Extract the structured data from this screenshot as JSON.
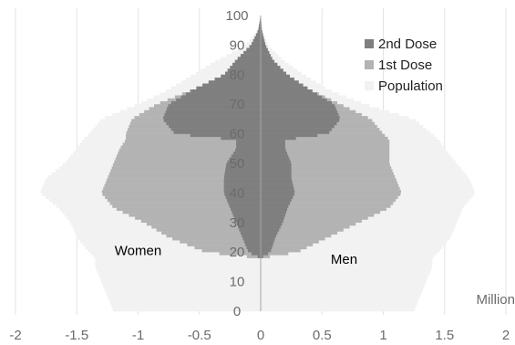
{
  "chart_data": {
    "type": "bar",
    "orientation": "horizontal",
    "subtype": "population-pyramid",
    "x_unit_label": "Million",
    "xlim": [
      -2,
      2
    ],
    "ylim": [
      0,
      100
    ],
    "x_ticks": [
      -2,
      -1.5,
      -1,
      -0.5,
      0,
      0.5,
      1,
      1.5,
      2
    ],
    "x_tick_labels": [
      "-2",
      "-1.5",
      "-1",
      "-0.5",
      "0",
      "0.5",
      "1",
      "1.5",
      "2"
    ],
    "y_ticks": [
      0,
      10,
      20,
      30,
      40,
      50,
      60,
      70,
      80,
      90,
      100
    ],
    "y_tick_labels": [
      "0",
      "10",
      "20",
      "30",
      "40",
      "50",
      "60",
      "70",
      "80",
      "90",
      "100"
    ],
    "grid": "vertical",
    "legend_position": "top-right",
    "annotations": [
      {
        "text": "Women",
        "x": -1.0,
        "y": 19
      },
      {
        "text": "Men",
        "x": 0.68,
        "y": 16
      }
    ],
    "age_points": [
      0,
      5,
      10,
      15,
      18,
      20,
      25,
      30,
      35,
      40,
      45,
      50,
      55,
      58,
      60,
      65,
      70,
      75,
      80,
      85,
      90,
      95,
      100
    ],
    "series": [
      {
        "name": "Population",
        "color": "#f2f2f2",
        "women": [
          1.2,
          1.25,
          1.3,
          1.35,
          1.35,
          1.4,
          1.5,
          1.55,
          1.65,
          1.8,
          1.75,
          1.6,
          1.5,
          1.45,
          1.4,
          1.3,
          1.0,
          0.75,
          0.55,
          0.35,
          0.12,
          0.03,
          0.0
        ],
        "men": [
          1.25,
          1.3,
          1.35,
          1.4,
          1.4,
          1.45,
          1.55,
          1.6,
          1.65,
          1.75,
          1.7,
          1.6,
          1.5,
          1.45,
          1.4,
          1.25,
          0.85,
          0.55,
          0.35,
          0.18,
          0.06,
          0.01,
          0.0
        ]
      },
      {
        "name": "1st Dose",
        "color": "#b3b3b3",
        "women": [
          0,
          0,
          0,
          0,
          0.0,
          0.45,
          0.75,
          0.95,
          1.2,
          1.3,
          1.25,
          1.2,
          1.15,
          1.1,
          1.1,
          1.05,
          0.85,
          0.55,
          0.3,
          0.2,
          0.08,
          0.02,
          0.0
        ],
        "men": [
          0,
          0,
          0,
          0,
          0.0,
          0.3,
          0.55,
          0.8,
          1.05,
          1.15,
          1.1,
          1.05,
          1.05,
          1.05,
          1.0,
          0.9,
          0.65,
          0.4,
          0.22,
          0.1,
          0.04,
          0.01,
          0.0
        ]
      },
      {
        "name": "2nd Dose",
        "color": "#7f7f7f",
        "women": [
          0,
          0,
          0,
          0,
          0.0,
          0.1,
          0.15,
          0.2,
          0.25,
          0.3,
          0.3,
          0.28,
          0.2,
          0.2,
          0.7,
          0.8,
          0.75,
          0.55,
          0.3,
          0.2,
          0.08,
          0.02,
          0.0
        ],
        "men": [
          0,
          0,
          0,
          0,
          0.0,
          0.08,
          0.12,
          0.18,
          0.22,
          0.28,
          0.25,
          0.25,
          0.2,
          0.2,
          0.55,
          0.65,
          0.6,
          0.4,
          0.22,
          0.1,
          0.04,
          0.01,
          0.0
        ]
      }
    ],
    "legend": [
      {
        "label": "2nd Dose",
        "color": "#7f7f7f"
      },
      {
        "label": "1st Dose",
        "color": "#b3b3b3"
      },
      {
        "label": "Population",
        "color": "#f2f2f2"
      }
    ]
  }
}
